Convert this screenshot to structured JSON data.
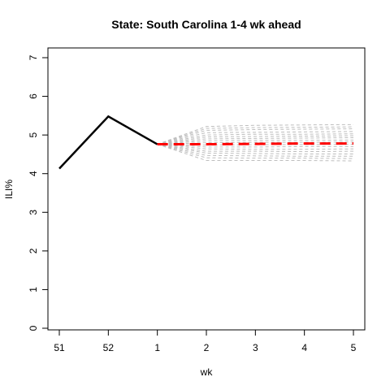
{
  "chart_data": {
    "type": "line",
    "title": "State: South Carolina 1-4 wk ahead",
    "xlabel": "wk",
    "ylabel": "ILI%",
    "x_ticks": [
      "51",
      "52",
      "1",
      "2",
      "3",
      "4",
      "5"
    ],
    "y_ticks": [
      0,
      1,
      2,
      3,
      4,
      5,
      6,
      7
    ],
    "ylim": [
      0,
      7
    ],
    "grid": false,
    "legend": "none",
    "series": [
      {
        "role": "observed",
        "color": "#000000",
        "style": "solid",
        "points": [
          [
            "51",
            4.13
          ],
          [
            "52",
            5.48
          ],
          [
            "1",
            4.76
          ]
        ]
      },
      {
        "role": "forecast",
        "color": "#ff0000",
        "style": "dashed",
        "points": [
          [
            "1",
            4.76
          ],
          [
            "2",
            4.76
          ],
          [
            "3",
            4.77
          ],
          [
            "4",
            4.78
          ],
          [
            "5",
            4.78
          ]
        ]
      }
    ],
    "ensemble": {
      "color": "#bebebe",
      "style": "dashed",
      "start": [
        "1",
        4.76
      ],
      "x": [
        "2",
        "3",
        "4",
        "5"
      ],
      "members": [
        [
          5.22,
          5.25,
          5.26,
          5.27
        ],
        [
          5.17,
          5.19,
          5.2,
          5.21
        ],
        [
          5.12,
          5.14,
          5.15,
          5.16
        ],
        [
          5.06,
          5.07,
          5.08,
          5.09
        ],
        [
          5.0,
          5.02,
          5.02,
          5.03
        ],
        [
          4.95,
          4.96,
          4.97,
          4.98
        ],
        [
          4.9,
          4.91,
          4.92,
          4.93
        ],
        [
          4.85,
          4.86,
          4.86,
          4.87
        ],
        [
          4.8,
          4.81,
          4.81,
          4.82
        ],
        [
          4.74,
          4.75,
          4.75,
          4.76
        ],
        [
          4.69,
          4.69,
          4.7,
          4.7
        ],
        [
          4.64,
          4.63,
          4.63,
          4.64
        ],
        [
          4.58,
          4.58,
          4.57,
          4.58
        ],
        [
          4.53,
          4.52,
          4.51,
          4.51
        ],
        [
          4.47,
          4.46,
          4.45,
          4.45
        ],
        [
          4.41,
          4.4,
          4.4,
          4.39
        ],
        [
          4.34,
          4.34,
          4.34,
          4.33
        ]
      ]
    }
  }
}
